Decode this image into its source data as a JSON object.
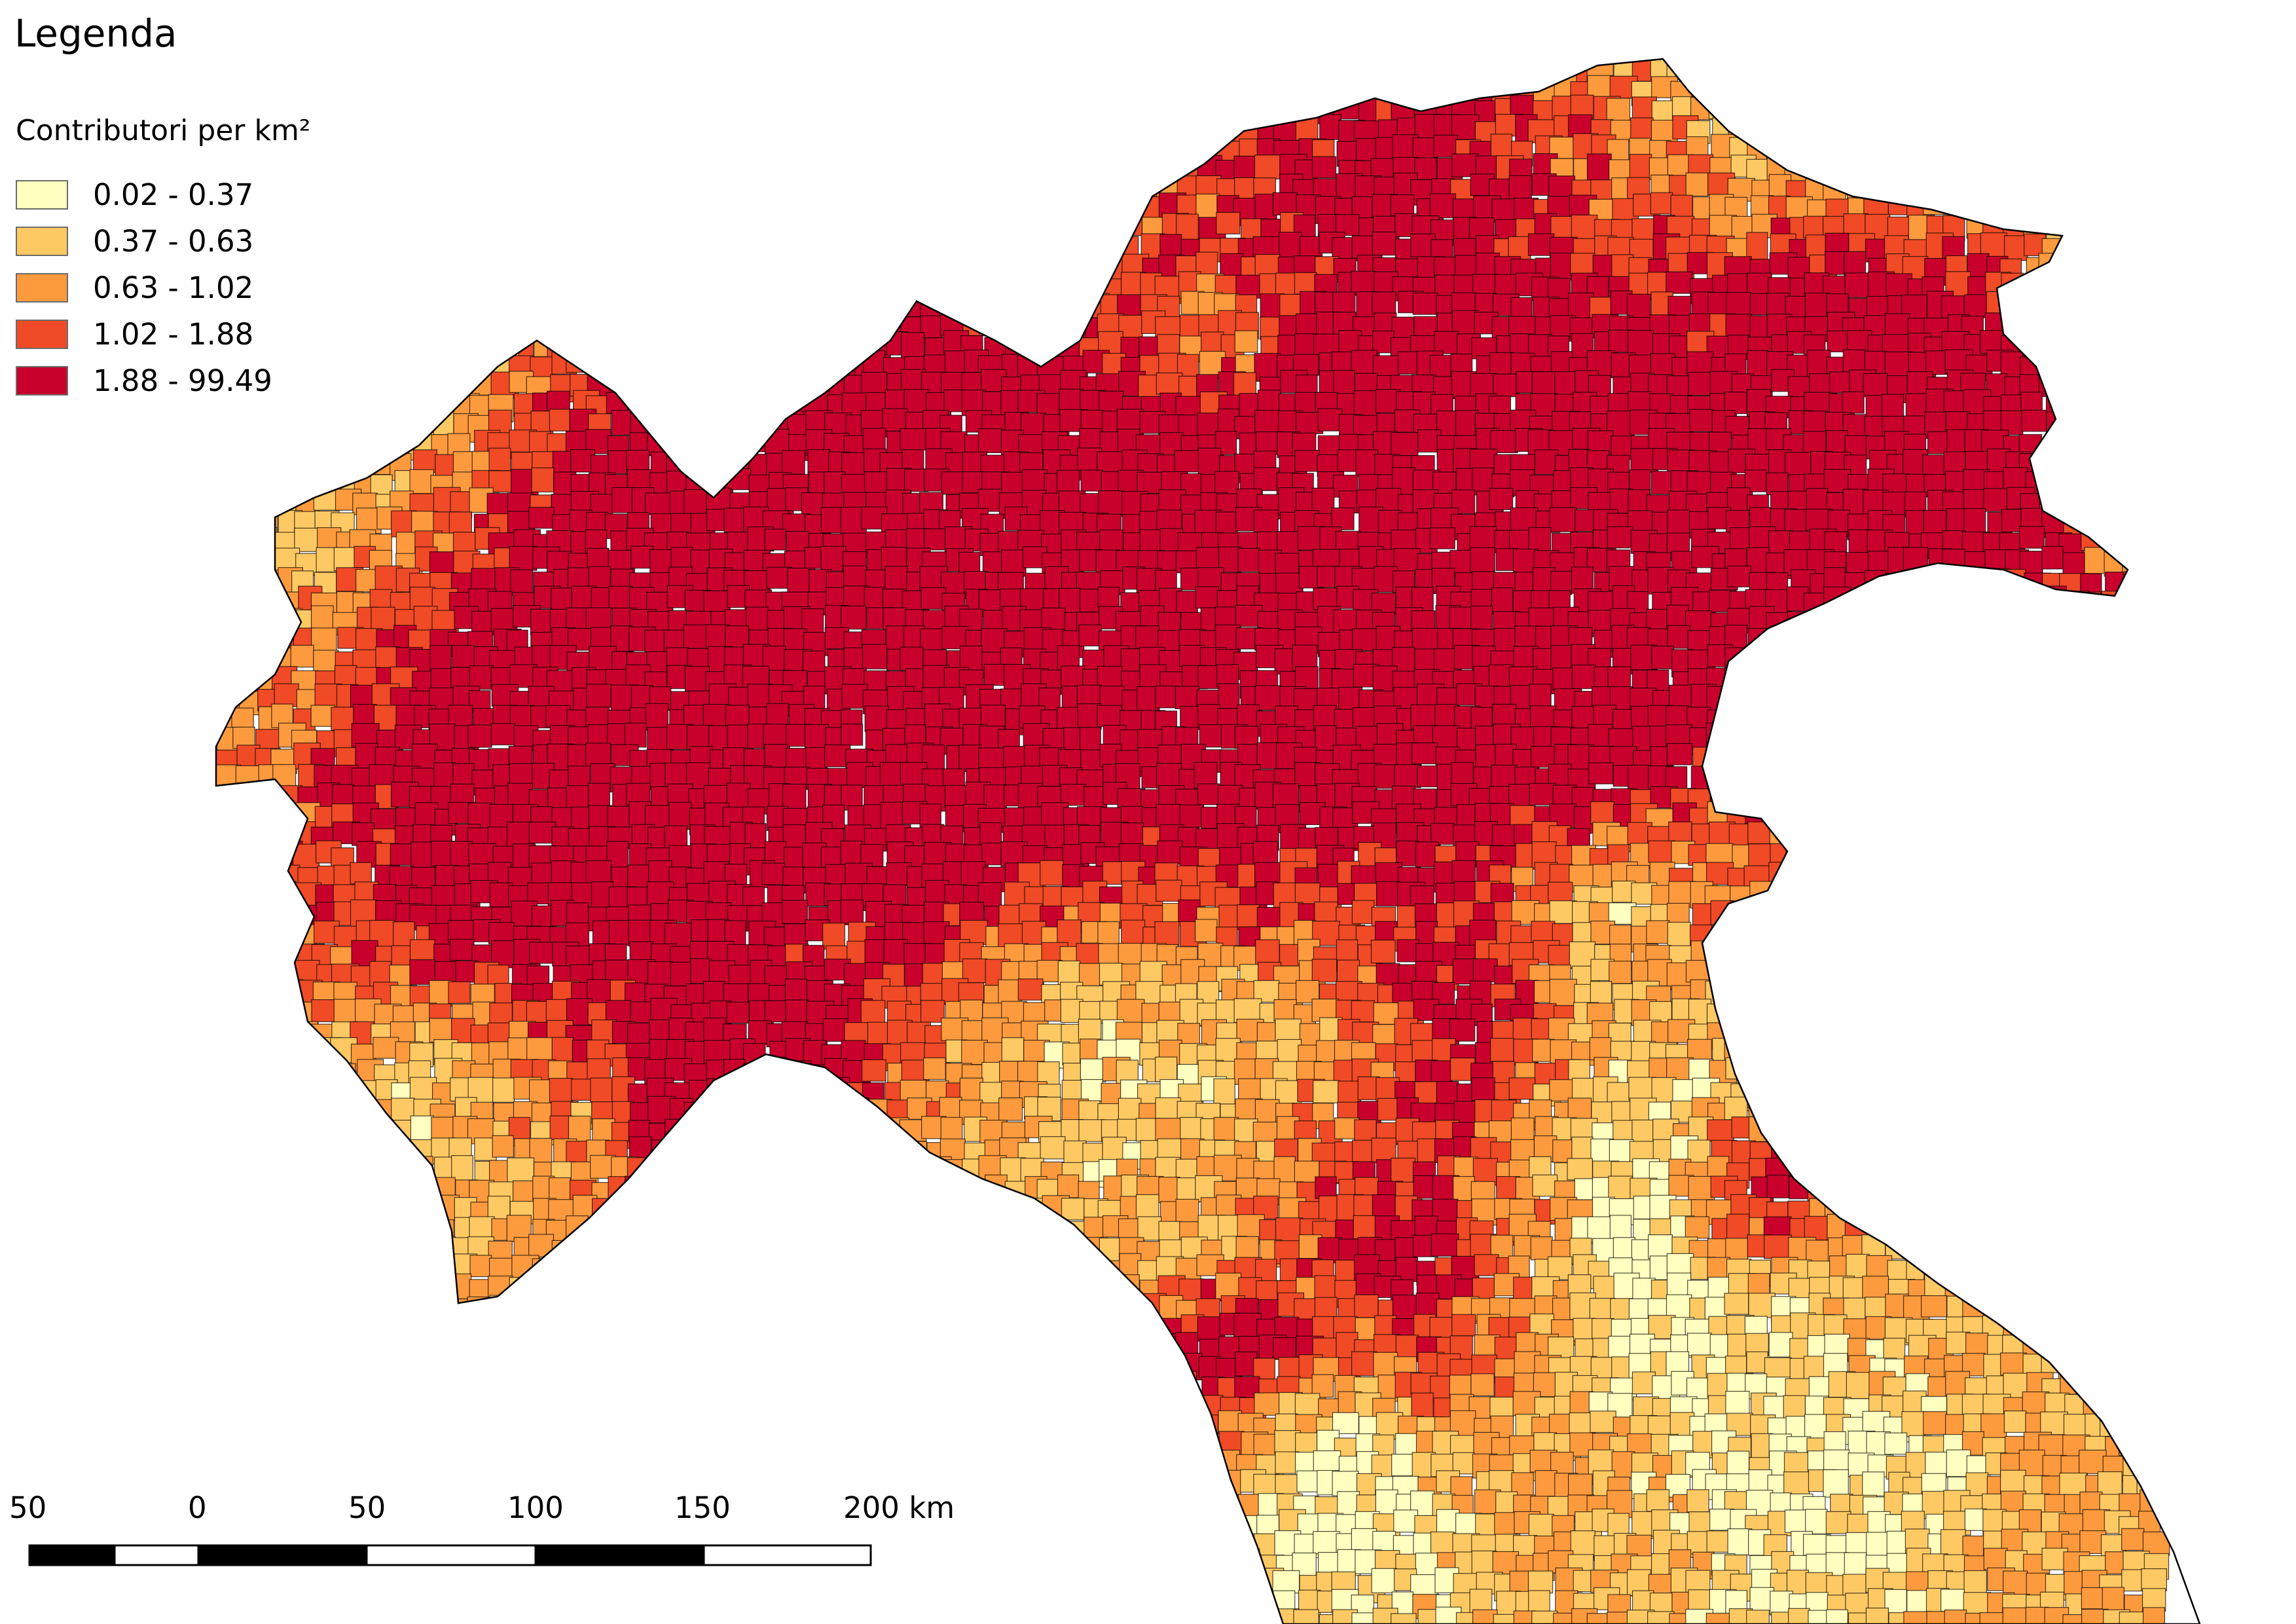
{
  "legend": {
    "title": "Legenda",
    "subtitle": "Contributori per km²",
    "classes": [
      {
        "label": "0.02 - 0.37",
        "color": "#ffffbf"
      },
      {
        "label": "0.37 - 0.63",
        "color": "#fec963"
      },
      {
        "label": "0.63 - 1.02",
        "color": "#fd9a3e"
      },
      {
        "label": "1.02 - 1.88",
        "color": "#f04a26"
      },
      {
        "label": "1.88 - 99.49",
        "color": "#c8002b"
      }
    ]
  },
  "scale_bar": {
    "labels": [
      "50",
      "0",
      "50",
      "100",
      "150",
      "200 km"
    ],
    "segment_colors": [
      "#000000",
      "#ffffff"
    ]
  },
  "map": {
    "sea_color": "#ffffff",
    "border_color": "#000000"
  }
}
